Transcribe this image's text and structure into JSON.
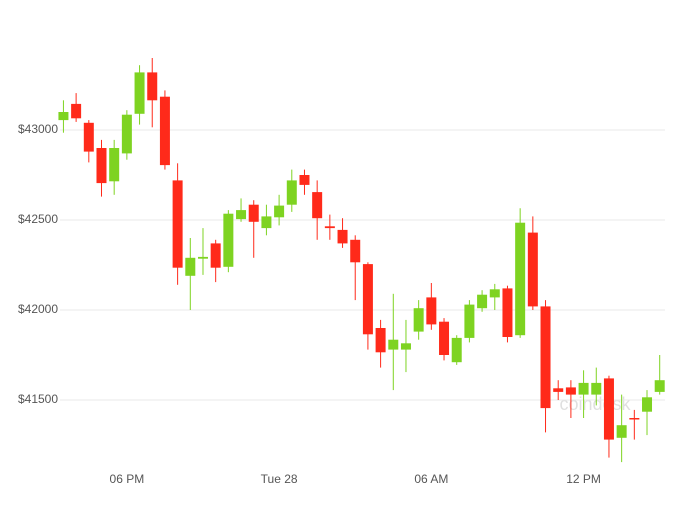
{
  "chart_data": {
    "type": "candlestick",
    "watermark": "coindesk",
    "x": [
      15.5,
      16,
      16.5,
      17,
      17.5,
      18,
      18.5,
      19,
      19.5,
      20,
      20.5,
      21,
      21.5,
      22,
      22.5,
      23,
      23.5,
      24,
      24.5,
      25,
      25.5,
      26,
      26.5,
      27,
      27.5,
      28,
      28.5,
      29,
      29.5,
      30,
      30.5,
      31,
      31.5,
      32,
      32.5,
      33,
      33.5,
      34,
      34.5,
      35,
      35.5,
      36,
      36.5,
      37,
      37.5,
      38,
      38.5,
      39
    ],
    "open": [
      43055,
      43145,
      43040,
      42900,
      42715,
      42870,
      43090,
      43320,
      43185,
      42720,
      42190,
      42285,
      42370,
      42240,
      42505,
      42585,
      42455,
      42515,
      42585,
      42750,
      42655,
      42465,
      42445,
      42390,
      42255,
      41900,
      41780,
      41780,
      41880,
      42070,
      41935,
      41710,
      41845,
      42010,
      42070,
      42120,
      41860,
      42430,
      42020,
      41565,
      41570,
      41530,
      41530,
      41620,
      41290,
      41400,
      41435,
      41545
    ],
    "high": [
      43165,
      43205,
      43055,
      42945,
      42945,
      43110,
      43360,
      43400,
      43220,
      42815,
      42400,
      42455,
      42390,
      42555,
      42620,
      42610,
      42585,
      42640,
      42780,
      42780,
      42720,
      42530,
      42510,
      42415,
      42265,
      41945,
      42090,
      41945,
      42055,
      42150,
      41955,
      41860,
      42055,
      42110,
      42145,
      42135,
      42565,
      42520,
      42055,
      41610,
      41610,
      41665,
      41680,
      41635,
      41530,
      41445,
      41555,
      41750
    ],
    "low": [
      42985,
      43045,
      42820,
      42630,
      42640,
      42835,
      43030,
      43015,
      42780,
      42140,
      42000,
      42195,
      42155,
      42210,
      42490,
      42290,
      42415,
      42470,
      42545,
      42640,
      42390,
      42390,
      42345,
      42055,
      41780,
      41680,
      41555,
      41655,
      41835,
      41890,
      41720,
      41695,
      41820,
      41990,
      42000,
      41820,
      41845,
      42000,
      41320,
      41500,
      41400,
      41400,
      41470,
      41180,
      41155,
      41280,
      41305,
      41530
    ],
    "close": [
      43100,
      43065,
      42880,
      42705,
      42900,
      43085,
      43320,
      43165,
      42805,
      42235,
      42290,
      42295,
      42235,
      42535,
      42555,
      42490,
      42520,
      42580,
      42720,
      42695,
      42510,
      42455,
      42370,
      42265,
      41865,
      41765,
      41835,
      41815,
      42010,
      41920,
      41750,
      41845,
      42030,
      42085,
      42115,
      41850,
      42485,
      42020,
      41455,
      41545,
      41530,
      41595,
      41595,
      41280,
      41360,
      41395,
      41515,
      41610
    ],
    "up_color": "#7ed321",
    "down_color": "#ff2a1a",
    "xlim": [
      13,
      39.8
    ],
    "xticks": [
      {
        "value": 18,
        "label": "06 PM"
      },
      {
        "value": 24,
        "label": "Tue 28"
      },
      {
        "value": 30,
        "label": "06 AM"
      },
      {
        "value": 36,
        "label": "12 PM"
      }
    ],
    "ylim": [
      41150,
      43600
    ],
    "yticks": [
      {
        "value": 41500,
        "label": "$41500"
      },
      {
        "value": 42000,
        "label": "$42000"
      },
      {
        "value": 42500,
        "label": "$42500"
      },
      {
        "value": 43000,
        "label": "$43000"
      }
    ],
    "grid": true
  }
}
